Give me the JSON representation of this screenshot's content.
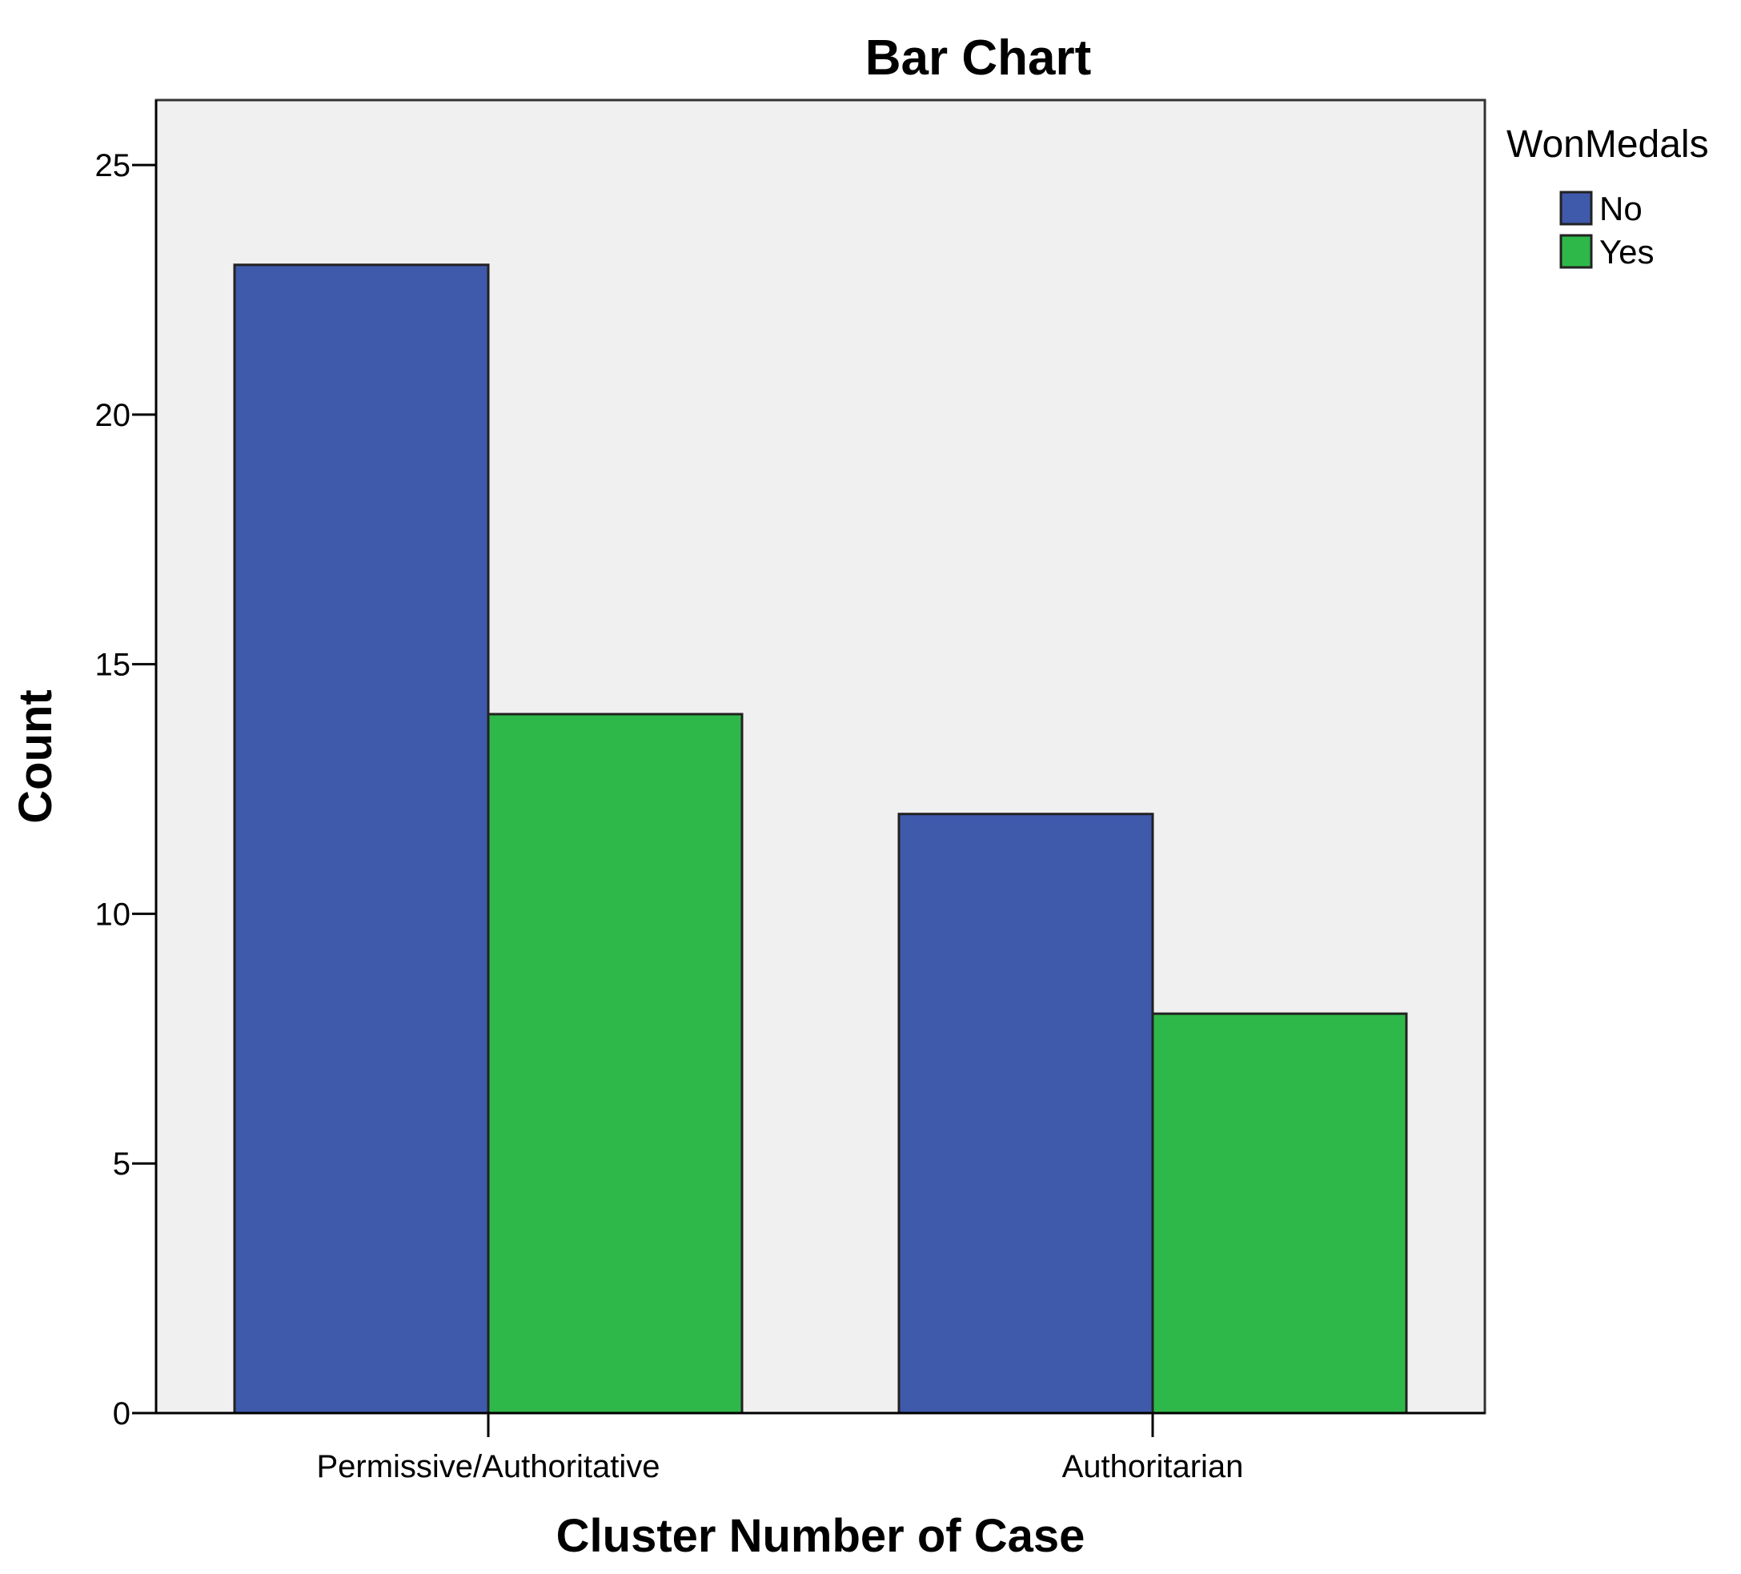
{
  "chart_data": {
    "type": "bar",
    "title": "Bar Chart",
    "xlabel": "Cluster Number of Case",
    "ylabel": "Count",
    "categories": [
      "Permissive/Authoritative",
      "Authoritarian"
    ],
    "series": [
      {
        "name": "No",
        "values": [
          23,
          12
        ],
        "color": "#3f59ab"
      },
      {
        "name": "Yes",
        "values": [
          14,
          8
        ],
        "color": "#2fb84a"
      }
    ],
    "ylim": [
      0,
      26.3
    ],
    "yticks": [
      0,
      5,
      10,
      15,
      20,
      25
    ],
    "legend": {
      "title": "WonMedals",
      "position": "right"
    },
    "plot_background": "#f0f0f0",
    "grid": false
  }
}
